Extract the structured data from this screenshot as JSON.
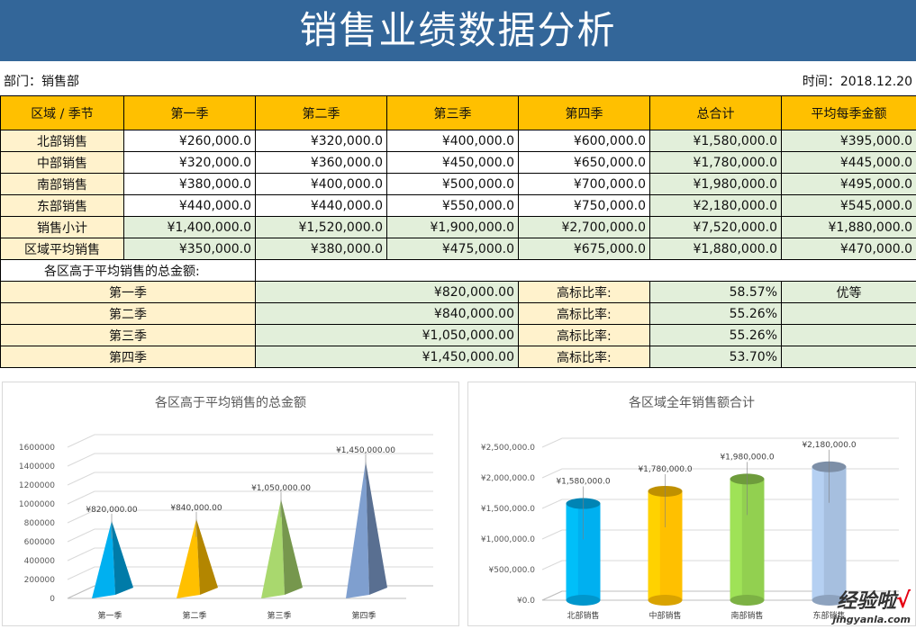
{
  "title": "销售业绩数据分析",
  "department": "部门：销售部",
  "date": "时间：2018.12.20",
  "table": {
    "headers": [
      "区域 / 季节",
      "第一季",
      "第二季",
      "第三季",
      "第四季",
      "总合计",
      "平均每季金额"
    ],
    "rows": [
      {
        "label": "北部销售",
        "values": [
          "¥260,000.0",
          "¥320,000.0",
          "¥400,000.0",
          "¥600,000.0",
          "¥1,580,000.0",
          "¥395,000.0"
        ]
      },
      {
        "label": "中部销售",
        "values": [
          "¥320,000.0",
          "¥360,000.0",
          "¥450,000.0",
          "¥650,000.0",
          "¥1,780,000.0",
          "¥445,000.0"
        ]
      },
      {
        "label": "南部销售",
        "values": [
          "¥380,000.0",
          "¥400,000.0",
          "¥500,000.0",
          "¥700,000.0",
          "¥1,980,000.0",
          "¥495,000.0"
        ]
      },
      {
        "label": "东部销售",
        "values": [
          "¥440,000.0",
          "¥440,000.0",
          "¥550,000.0",
          "¥750,000.0",
          "¥2,180,000.0",
          "¥545,000.0"
        ]
      },
      {
        "label": "销售小计",
        "values": [
          "¥1,400,000.0",
          "¥1,520,000.0",
          "¥1,900,000.0",
          "¥2,700,000.0",
          "¥7,520,000.0",
          "¥1,880,000.0"
        ]
      },
      {
        "label": "区域平均销售",
        "values": [
          "¥350,000.0",
          "¥380,000.0",
          "¥475,000.0",
          "¥675,000.0",
          "¥1,880,000.0",
          "¥470,000.0"
        ]
      }
    ]
  },
  "summary": {
    "title": "各区高于平均销售的总金额:",
    "rate_label": "高标比率:",
    "rows": [
      {
        "label": "第一季",
        "amount": "¥820,000.00",
        "rate": "58.57%",
        "grade": "优等"
      },
      {
        "label": "第二季",
        "amount": "¥840,000.00",
        "rate": "55.26%",
        "grade": ""
      },
      {
        "label": "第三季",
        "amount": "¥1,050,000.00",
        "rate": "55.26%",
        "grade": ""
      },
      {
        "label": "第四季",
        "amount": "¥1,450,000.00",
        "rate": "53.70%",
        "grade": ""
      }
    ]
  },
  "chart_data": [
    {
      "type": "bar",
      "title": "各区高于平均销售的总金额",
      "categories": [
        "第一季",
        "第二季",
        "第三季",
        "第四季"
      ],
      "values": [
        820000,
        840000,
        1050000,
        1450000
      ],
      "data_labels": [
        "¥820,000.00",
        "¥840,000.00",
        "¥1,050,000.00",
        "¥1,450,000.00"
      ],
      "y_ticks": [
        "0",
        "200000",
        "400000",
        "600000",
        "800000",
        "1000000",
        "1200000",
        "1400000",
        "1600000"
      ],
      "ylim": [
        0,
        1600000
      ],
      "shape": "pyramid",
      "colors": [
        "#00b0f0",
        "#ffc000",
        "#a9d86e",
        "#7f9fcf"
      ],
      "grid": true,
      "legend": "none"
    },
    {
      "type": "bar",
      "title": "各区域全年销售额合计",
      "categories": [
        "北部销售",
        "中部销售",
        "南部销售",
        "东部销售"
      ],
      "values": [
        1580000,
        1780000,
        1980000,
        2180000
      ],
      "data_labels": [
        "¥1,580,000.0",
        "¥1,780,000.0",
        "¥1,980,000.0",
        "¥2,180,000.0"
      ],
      "y_ticks": [
        "¥0.0",
        "¥500,000.0",
        "¥1,000,000.0",
        "¥1,500,000.0",
        "¥2,000,000.0",
        "¥2,500,000.0"
      ],
      "ylim": [
        0,
        2500000
      ],
      "shape": "cylinder",
      "colors": [
        "#00b0f0",
        "#ffc000",
        "#92d050",
        "#a6bfdf"
      ],
      "grid": true,
      "legend": "none"
    }
  ],
  "watermark": {
    "main": "经验啦",
    "check": "√",
    "sub": "jingyanla.com"
  }
}
